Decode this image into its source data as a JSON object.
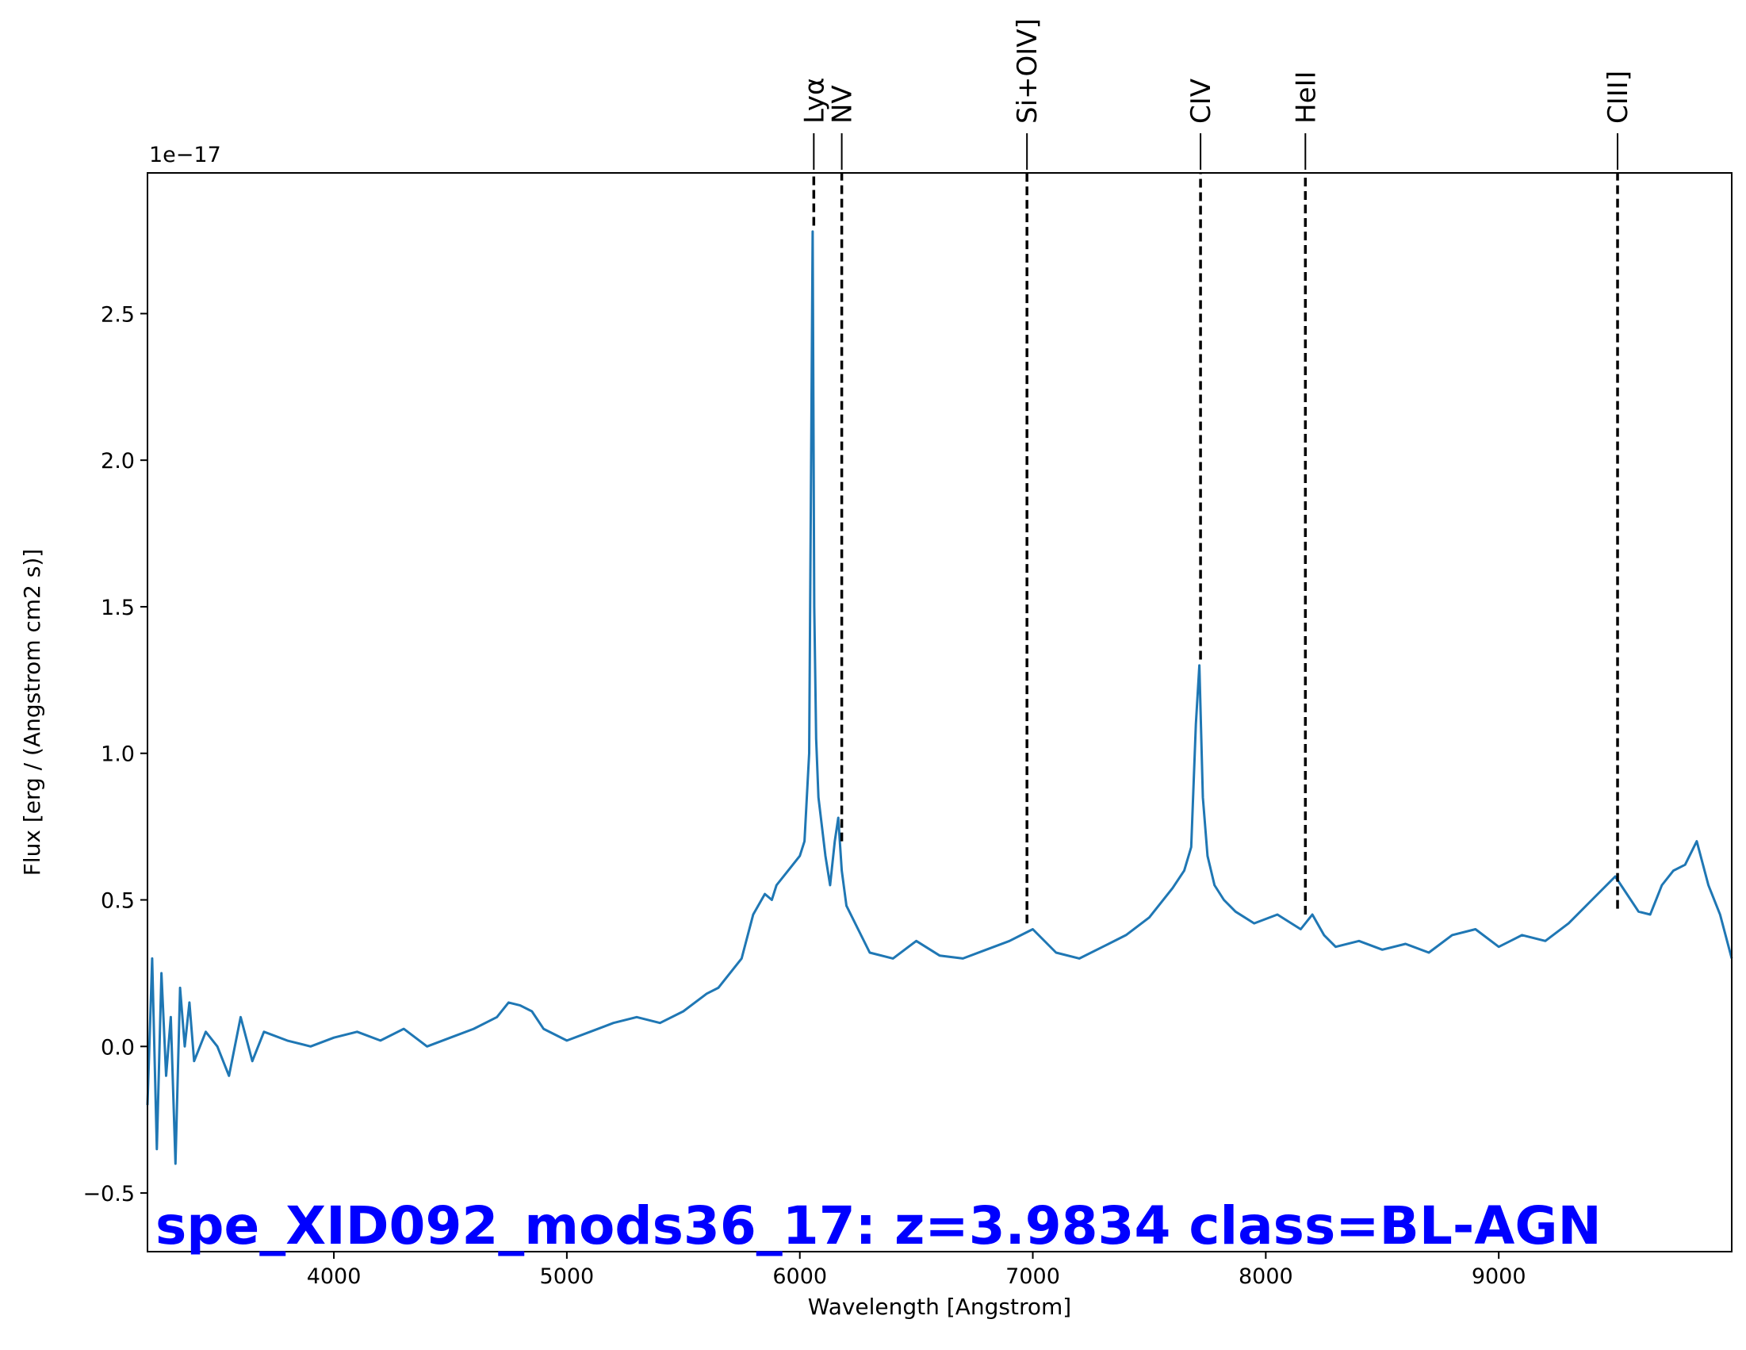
{
  "chart_data": {
    "type": "line",
    "xlabel": "Wavelength [Angstrom]",
    "ylabel": "Flux [erg / (Angstrom cm2 s)]",
    "offset_label": "1e−17",
    "xlim": [
      3200,
      10000
    ],
    "ylim": [
      -0.7,
      2.98
    ],
    "grid": false,
    "x_ticks": [
      4000,
      5000,
      6000,
      7000,
      8000,
      9000
    ],
    "y_ticks": [
      -0.5,
      0.0,
      0.5,
      1.0,
      1.5,
      2.0,
      2.5
    ],
    "y_tick_labels": [
      "−0.5",
      "0.0",
      "0.5",
      "1.0",
      "1.5",
      "2.0",
      "2.5"
    ],
    "series": [
      {
        "color": "#1f77b4",
        "x": [
          3200,
          3220,
          3240,
          3260,
          3280,
          3300,
          3320,
          3340,
          3360,
          3380,
          3400,
          3450,
          3500,
          3550,
          3600,
          3650,
          3700,
          3800,
          3900,
          4000,
          4100,
          4200,
          4300,
          4400,
          4500,
          4600,
          4700,
          4750,
          4800,
          4850,
          4900,
          4950,
          5000,
          5100,
          5200,
          5300,
          5400,
          5500,
          5600,
          5650,
          5700,
          5750,
          5800,
          5850,
          5880,
          5900,
          5950,
          6000,
          6020,
          6040,
          6055,
          6062,
          6070,
          6080,
          6095,
          6110,
          6130,
          6150,
          6165,
          6180,
          6200,
          6250,
          6300,
          6400,
          6500,
          6600,
          6700,
          6800,
          6900,
          6950,
          7000,
          7100,
          7200,
          7300,
          7400,
          7500,
          7600,
          7650,
          7680,
          7700,
          7715,
          7730,
          7750,
          7780,
          7820,
          7870,
          7950,
          8050,
          8150,
          8200,
          8250,
          8300,
          8400,
          8500,
          8600,
          8700,
          8800,
          8900,
          9000,
          9100,
          9200,
          9300,
          9400,
          9500,
          9600,
          9650,
          9700,
          9750,
          9800,
          9850,
          9900,
          9950,
          10000
        ],
        "y": [
          -0.2,
          0.3,
          -0.35,
          0.25,
          -0.1,
          0.1,
          -0.4,
          0.2,
          0.0,
          0.15,
          -0.05,
          0.05,
          0.0,
          -0.1,
          0.1,
          -0.05,
          0.05,
          0.02,
          0.0,
          0.03,
          0.05,
          0.02,
          0.06,
          0.0,
          0.03,
          0.06,
          0.1,
          0.15,
          0.14,
          0.12,
          0.06,
          0.04,
          0.02,
          0.05,
          0.08,
          0.1,
          0.08,
          0.12,
          0.18,
          0.2,
          0.25,
          0.3,
          0.45,
          0.52,
          0.5,
          0.55,
          0.6,
          0.65,
          0.7,
          1.0,
          2.78,
          1.5,
          1.05,
          0.85,
          0.75,
          0.65,
          0.55,
          0.7,
          0.78,
          0.6,
          0.48,
          0.4,
          0.32,
          0.3,
          0.36,
          0.31,
          0.3,
          0.33,
          0.36,
          0.38,
          0.4,
          0.32,
          0.3,
          0.34,
          0.38,
          0.44,
          0.54,
          0.6,
          0.68,
          1.1,
          1.3,
          0.85,
          0.65,
          0.55,
          0.5,
          0.46,
          0.42,
          0.45,
          0.4,
          0.45,
          0.38,
          0.34,
          0.36,
          0.33,
          0.35,
          0.32,
          0.38,
          0.4,
          0.34,
          0.38,
          0.36,
          0.42,
          0.5,
          0.58,
          0.46,
          0.45,
          0.55,
          0.6,
          0.62,
          0.7,
          0.55,
          0.45,
          0.3
        ]
      }
    ],
    "vlines": [
      {
        "x": 6060,
        "label": "Lyα",
        "y_start": 2.8
      },
      {
        "x": 6180,
        "label": "NV",
        "y_start": 0.7
      },
      {
        "x": 6975,
        "label": "Si+OIV]",
        "y_start": 0.42
      },
      {
        "x": 7720,
        "label": "CIV",
        "y_start": 1.32
      },
      {
        "x": 8170,
        "label": "HeII",
        "y_start": 0.45
      },
      {
        "x": 9510,
        "label": "CIII]",
        "y_start": 0.47
      }
    ],
    "annotation": {
      "text": "spe_XID092_mods36_17: z=3.9834 class=BL-AGN",
      "color": "#0000ff"
    }
  }
}
